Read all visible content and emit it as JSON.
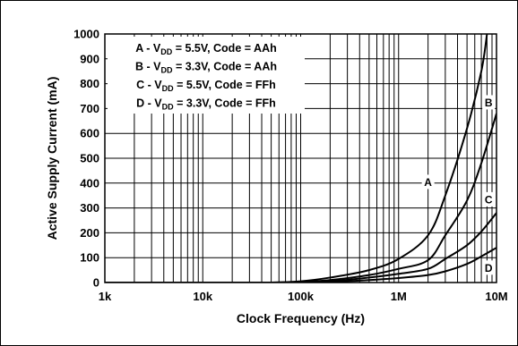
{
  "chart_data": {
    "type": "line",
    "title": "",
    "xlabel": "Clock Frequency (Hz)",
    "ylabel": "Active Supply Current (mA)",
    "xscale": "log",
    "xlim": [
      1000,
      10000000
    ],
    "ylim": [
      0,
      1000
    ],
    "x_ticks": [
      {
        "value": 1000,
        "label": "1k"
      },
      {
        "value": 10000,
        "label": "10k"
      },
      {
        "value": 100000,
        "label": "100k"
      },
      {
        "value": 1000000,
        "label": "1M"
      },
      {
        "value": 10000000,
        "label": "10M"
      }
    ],
    "y_ticks": [
      0,
      100,
      200,
      300,
      400,
      500,
      600,
      700,
      800,
      900,
      1000
    ],
    "grid": true,
    "legend_position": "top-left",
    "series": [
      {
        "id": "A",
        "legend": {
          "prefix": "A - V",
          "sub": "DD",
          "suffix": " = 5.5V, Code = AAh"
        },
        "x": [
          1000,
          10000,
          50000,
          100000,
          200000,
          500000,
          1000000,
          2000000,
          3000000,
          5000000,
          7000000,
          8000000
        ],
        "y": [
          0,
          0,
          0,
          5,
          20,
          50,
          95,
          190,
          350,
          620,
          850,
          1000
        ]
      },
      {
        "id": "B",
        "legend": {
          "prefix": "B - V",
          "sub": "DD",
          "suffix": " = 3.3V, Code = AAh"
        },
        "x": [
          1000,
          10000,
          50000,
          100000,
          200000,
          500000,
          1000000,
          2000000,
          3000000,
          5000000,
          7000000,
          10000000
        ],
        "y": [
          0,
          0,
          0,
          3,
          10,
          30,
          55,
          90,
          190,
          330,
          480,
          680
        ]
      },
      {
        "id": "C",
        "legend": {
          "prefix": "C - V",
          "sub": "DD",
          "suffix": " = 5.5V, Code = FFh"
        },
        "x": [
          1000,
          10000,
          50000,
          100000,
          200000,
          500000,
          1000000,
          2000000,
          3000000,
          5000000,
          7000000,
          10000000
        ],
        "y": [
          0,
          0,
          0,
          2,
          5,
          20,
          35,
          55,
          95,
          150,
          205,
          280
        ]
      },
      {
        "id": "D",
        "legend": {
          "prefix": "D - V",
          "sub": "DD",
          "suffix": " = 3.3V, Code = FFh"
        },
        "x": [
          1000,
          10000,
          50000,
          100000,
          200000,
          500000,
          1000000,
          2000000,
          3000000,
          5000000,
          7000000,
          10000000
        ],
        "y": [
          0,
          0,
          0,
          1,
          3,
          10,
          18,
          30,
          45,
          75,
          105,
          140
        ]
      }
    ],
    "curve_labels": [
      {
        "text": "A",
        "x": 2000000,
        "y": 405
      },
      {
        "text": "B",
        "x": 8300000,
        "y": 725
      },
      {
        "text": "C",
        "x": 8300000,
        "y": 335
      },
      {
        "text": "D",
        "x": 8300000,
        "y": 60
      }
    ]
  }
}
